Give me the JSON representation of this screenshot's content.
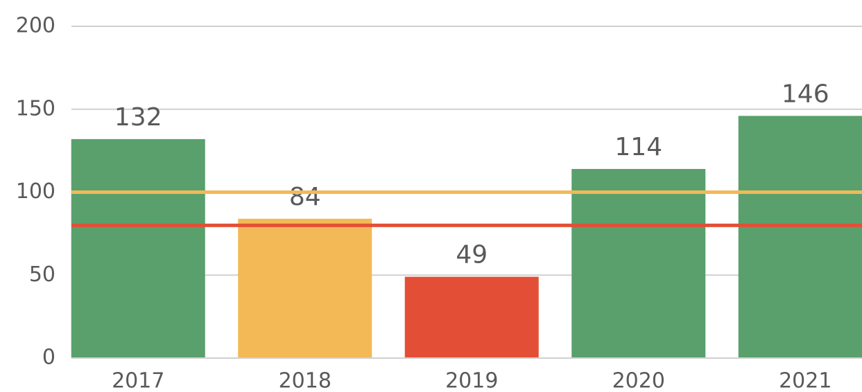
{
  "chart_data": {
    "type": "bar",
    "categories": [
      "2017",
      "2018",
      "2019",
      "2020",
      "2021"
    ],
    "values": [
      132,
      84,
      49,
      114,
      146
    ],
    "colors": [
      "#59a06c",
      "#f2b956",
      "#e34f36",
      "#59a06c",
      "#59a06c"
    ],
    "reference_lines": [
      {
        "value": 100,
        "color": "#f2b956"
      },
      {
        "value": 80,
        "color": "#e34f36"
      }
    ],
    "ylim": [
      0,
      200
    ],
    "yticks": [
      0,
      50,
      100,
      150,
      200
    ],
    "grid": true
  }
}
